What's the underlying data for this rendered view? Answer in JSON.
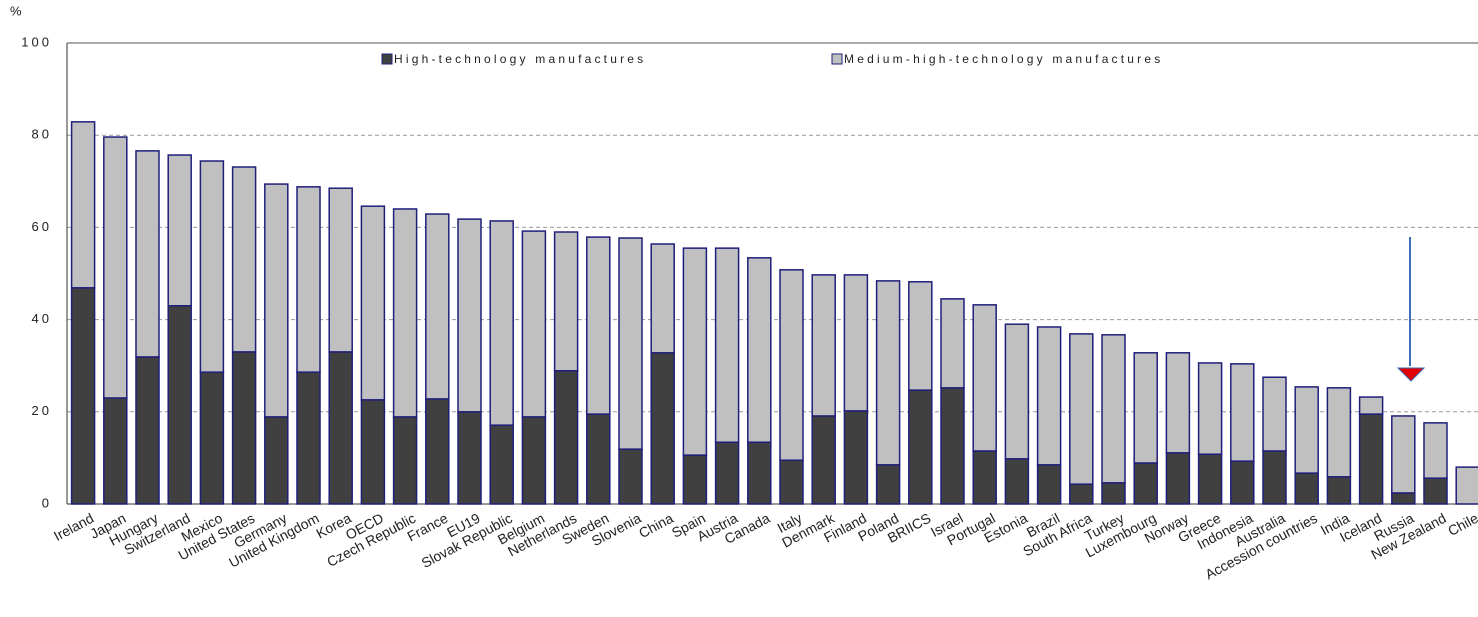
{
  "chart_data": {
    "type": "stacked-bar",
    "y_label": "%",
    "categories": [
      "Ireland",
      "Japan",
      "Hungary",
      "Switzerland",
      "Mexico",
      "United States",
      "Germany",
      "United Kingdom",
      "Korea",
      "OECD",
      "Czech Republic",
      "France",
      "EU19",
      "Slovak Republic",
      "Belgium",
      "Netherlands",
      "Sweden",
      "Slovenia",
      "China",
      "Spain",
      "Austria",
      "Canada",
      "Italy",
      "Denmark",
      "Finland",
      "Poland",
      "BRIICS",
      "Israel",
      "Portugal",
      "Estonia",
      "Brazil",
      "South Africa",
      "Turkey",
      "Luxembourg",
      "Norway",
      "Greece",
      "Indonesia",
      "Australia",
      "Accession countries",
      "India",
      "Iceland",
      "Russia",
      "New Zealand",
      "Chile"
    ],
    "series": [
      {
        "name": "High-technology manufactures",
        "color": "#404040",
        "values": [
          46.9,
          23.0,
          31.9,
          43.0,
          28.6,
          33.0,
          18.9,
          28.6,
          33.0,
          22.6,
          18.9,
          22.8,
          20.0,
          17.1,
          18.9,
          28.9,
          19.5,
          11.9,
          32.8,
          10.6,
          13.4,
          13.4,
          9.5,
          19.1,
          20.2,
          8.5,
          24.7,
          25.2,
          11.5,
          9.8,
          8.5,
          4.3,
          4.6,
          8.9,
          11.1,
          10.8,
          9.3,
          11.5,
          6.7,
          5.9,
          19.5,
          2.4,
          5.6,
          0
        ]
      },
      {
        "name": "Medium-high-technology manufactures",
        "color": "#c0c0c0",
        "values": [
          36.0,
          56.6,
          44.7,
          32.7,
          45.8,
          40.1,
          50.5,
          40.2,
          35.5,
          42.0,
          45.1,
          40.1,
          41.8,
          44.3,
          40.3,
          30.1,
          38.4,
          45.8,
          23.6,
          44.9,
          42.1,
          40.0,
          41.3,
          30.6,
          29.5,
          39.9,
          23.5,
          19.3,
          31.7,
          29.2,
          29.9,
          32.6,
          32.1,
          23.9,
          21.7,
          19.8,
          21.1,
          16.0,
          18.7,
          19.3,
          3.7,
          16.7,
          12.0,
          8.0
        ]
      }
    ],
    "ylim": [
      0,
      100
    ],
    "yticks": [
      0,
      20,
      40,
      60,
      80,
      100
    ],
    "grid": true
  }
}
